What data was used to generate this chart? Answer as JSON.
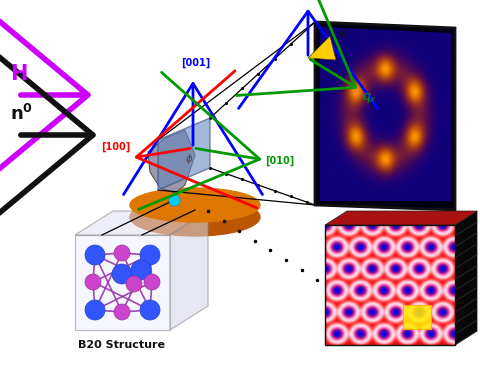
{
  "bg_color": "#ffffff",
  "fig_w": 4.8,
  "fig_h": 3.67,
  "dpi": 100,
  "H_label": "H",
  "H_color": "#cc00ff",
  "n0_label": "$\\mathbf{n^0}$",
  "n0_color": "#111111",
  "axes_001_color": "#0000ff",
  "axes_100_color": "#ff0000",
  "axes_010_color": "#009900",
  "qx_color": "#009900",
  "qy_color": "#0000ff",
  "b20_label": "B20 Structure",
  "atom_blue": "#3355ff",
  "atom_pink": "#cc44cc",
  "bond_color": "#9933aa"
}
